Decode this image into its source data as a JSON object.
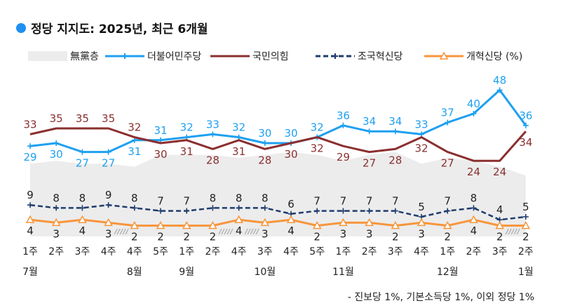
{
  "chart_data": {
    "type": "line",
    "title": "정당 지지도: 2025년, 최근 6개월",
    "categories": [
      "1주",
      "2주",
      "3주",
      "4주",
      "4주",
      "5주",
      "1주",
      "2주",
      "4주",
      "3주",
      "4주",
      "5주",
      "1주",
      "2주",
      "3주",
      "4주",
      "1주",
      "2주",
      "3주",
      "2주"
    ],
    "months": [
      {
        "index": 0,
        "label": "7월"
      },
      {
        "index": 4,
        "label": "8월"
      },
      {
        "index": 6,
        "label": "9월"
      },
      {
        "index": 9,
        "label": "10월"
      },
      {
        "index": 12,
        "label": "11월"
      },
      {
        "index": 16,
        "label": "12월"
      },
      {
        "index": 19,
        "label": "1월"
      }
    ],
    "break_after_indices": [
      3,
      7,
      8,
      18
    ],
    "series": [
      {
        "name": "無黨층",
        "type": "area",
        "color": "#ececec",
        "labeled": false,
        "values": [
          23,
          24,
          23,
          23,
          22,
          26,
          26,
          26,
          25,
          26,
          27,
          26,
          24,
          26,
          27,
          23,
          25,
          24,
          22,
          19
        ]
      },
      {
        "name": "더불어민주당",
        "color": "#1ea0f0",
        "marker": "plus",
        "values": [
          29,
          30,
          27,
          27,
          31,
          31,
          32,
          33,
          32,
          30,
          30,
          32,
          36,
          34,
          34,
          33,
          37,
          40,
          48,
          36
        ]
      },
      {
        "name": "국민의힘",
        "color": "#8b2f2f",
        "marker": "none",
        "values": [
          33,
          35,
          35,
          35,
          32,
          30,
          31,
          28,
          31,
          28,
          30,
          32,
          29,
          27,
          28,
          32,
          27,
          24,
          24,
          34
        ]
      },
      {
        "name": "조국혁신당",
        "color": "#1f3d6e",
        "marker": "plus",
        "dashed": true,
        "values": [
          9,
          8,
          8,
          9,
          8,
          7,
          7,
          8,
          8,
          8,
          6,
          7,
          7,
          7,
          7,
          5,
          7,
          8,
          4,
          5
        ]
      },
      {
        "name": "개혁신당 (%)",
        "color": "#f7963c",
        "marker": "triangle",
        "values": [
          4,
          3,
          4,
          3,
          2,
          2,
          2,
          2,
          4,
          3,
          4,
          2,
          3,
          3,
          2,
          3,
          2,
          4,
          2,
          2
        ]
      }
    ],
    "legend_position": "top",
    "grid": false,
    "footnote": "- 진보당 1%, 기본소득당 1%, 이외 정당 1%"
  }
}
